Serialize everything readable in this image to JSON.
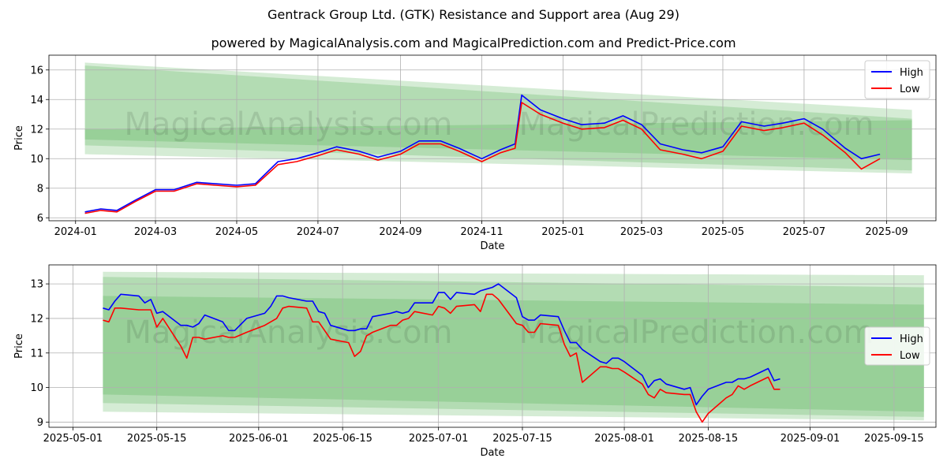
{
  "title": "Gentrack Group Ltd. (GTK) Resistance and Support area (Aug 29)",
  "subtitle": "powered by MagicalAnalysis.com and MagicalPrediction.com and Predict-Price.com",
  "watermark_left": "MagicalAnalysis.com",
  "watermark_right": "MagicalPrediction.com",
  "colors": {
    "high": "#0000ff",
    "low": "#ff0000",
    "band": "#2ca02c"
  },
  "chart_data": [
    {
      "type": "line",
      "xlabel": "Date",
      "ylabel": "Price",
      "x_ticks": [
        "2024-01",
        "2024-03",
        "2024-05",
        "2024-07",
        "2024-09",
        "2024-11",
        "2025-01",
        "2025-03",
        "2025-05",
        "2025-07",
        "2025-09"
      ],
      "y_ticks": [
        6,
        8,
        10,
        12,
        14,
        16
      ],
      "xlim": [
        "2023-12-12",
        "2025-10-08"
      ],
      "ylim": [
        5.8,
        17
      ],
      "grid": true,
      "legend": "top-right",
      "x": [
        "2024-01-08",
        "2024-01-20",
        "2024-02-01",
        "2024-02-15",
        "2024-03-01",
        "2024-03-15",
        "2024-04-01",
        "2024-04-15",
        "2024-05-01",
        "2024-05-15",
        "2024-06-01",
        "2024-06-15",
        "2024-07-01",
        "2024-07-15",
        "2024-08-01",
        "2024-08-15",
        "2024-09-01",
        "2024-09-15",
        "2024-10-01",
        "2024-10-15",
        "2024-11-01",
        "2024-11-15",
        "2024-11-26",
        "2024-12-01",
        "2024-12-15",
        "2025-01-01",
        "2025-01-15",
        "2025-02-01",
        "2025-02-15",
        "2025-03-01",
        "2025-03-15",
        "2025-04-01",
        "2025-04-15",
        "2025-05-01",
        "2025-05-15",
        "2025-06-01",
        "2025-06-15",
        "2025-07-01",
        "2025-07-15",
        "2025-08-01",
        "2025-08-13",
        "2025-08-27"
      ],
      "series": [
        {
          "name": "High",
          "values": [
            6.4,
            6.6,
            6.5,
            7.2,
            7.9,
            7.9,
            8.4,
            8.3,
            8.2,
            8.3,
            9.8,
            10.0,
            10.4,
            10.8,
            10.5,
            10.1,
            10.5,
            11.2,
            11.2,
            10.7,
            10.0,
            10.6,
            11.0,
            14.3,
            13.3,
            12.7,
            12.3,
            12.4,
            12.9,
            12.3,
            11.0,
            10.6,
            10.4,
            10.8,
            12.5,
            12.2,
            12.4,
            12.7,
            12.0,
            10.7,
            10.0,
            10.3
          ]
        },
        {
          "name": "Low",
          "values": [
            6.3,
            6.5,
            6.4,
            7.1,
            7.8,
            7.8,
            8.3,
            8.2,
            8.1,
            8.2,
            9.6,
            9.8,
            10.2,
            10.6,
            10.3,
            9.9,
            10.3,
            11.0,
            11.0,
            10.5,
            9.8,
            10.4,
            10.7,
            13.8,
            13.0,
            12.4,
            12.0,
            12.1,
            12.6,
            12.0,
            10.6,
            10.3,
            10.0,
            10.5,
            12.2,
            11.9,
            12.1,
            12.4,
            11.6,
            10.4,
            9.3,
            10.0
          ]
        }
      ]
    },
    {
      "type": "line",
      "xlabel": "Date",
      "ylabel": "Price",
      "x_ticks": [
        "2025-05-01",
        "2025-05-15",
        "2025-06-01",
        "2025-06-15",
        "2025-07-01",
        "2025-07-15",
        "2025-08-01",
        "2025-08-15",
        "2025-09-01",
        "2025-09-15"
      ],
      "y_ticks": [
        9,
        10,
        11,
        12,
        13
      ],
      "xlim": [
        "2025-04-27",
        "2025-09-22"
      ],
      "ylim": [
        8.85,
        13.55
      ],
      "grid": true,
      "legend": "center-right",
      "x": [
        "2025-05-06",
        "2025-05-07",
        "2025-05-08",
        "2025-05-09",
        "2025-05-12",
        "2025-05-13",
        "2025-05-14",
        "2025-05-15",
        "2025-05-16",
        "2025-05-19",
        "2025-05-20",
        "2025-05-21",
        "2025-05-22",
        "2025-05-23",
        "2025-05-26",
        "2025-05-27",
        "2025-05-28",
        "2025-05-30",
        "2025-06-02",
        "2025-06-03",
        "2025-06-04",
        "2025-06-05",
        "2025-06-06",
        "2025-06-09",
        "2025-06-10",
        "2025-06-11",
        "2025-06-12",
        "2025-06-13",
        "2025-06-16",
        "2025-06-17",
        "2025-06-18",
        "2025-06-19",
        "2025-06-20",
        "2025-06-23",
        "2025-06-24",
        "2025-06-25",
        "2025-06-26",
        "2025-06-27",
        "2025-06-30",
        "2025-07-01",
        "2025-07-02",
        "2025-07-03",
        "2025-07-04",
        "2025-07-07",
        "2025-07-08",
        "2025-07-09",
        "2025-07-10",
        "2025-07-11",
        "2025-07-14",
        "2025-07-15",
        "2025-07-16",
        "2025-07-17",
        "2025-07-18",
        "2025-07-21",
        "2025-07-22",
        "2025-07-23",
        "2025-07-24",
        "2025-07-25",
        "2025-07-28",
        "2025-07-29",
        "2025-07-30",
        "2025-07-31",
        "2025-08-01",
        "2025-08-04",
        "2025-08-05",
        "2025-08-06",
        "2025-08-07",
        "2025-08-08",
        "2025-08-11",
        "2025-08-12",
        "2025-08-13",
        "2025-08-14",
        "2025-08-15",
        "2025-08-18",
        "2025-08-19",
        "2025-08-20",
        "2025-08-21",
        "2025-08-22",
        "2025-08-25",
        "2025-08-26",
        "2025-08-27"
      ],
      "series": [
        {
          "name": "High",
          "values": [
            12.3,
            12.25,
            12.5,
            12.7,
            12.65,
            12.45,
            12.55,
            12.15,
            12.2,
            11.8,
            11.8,
            11.75,
            11.85,
            12.1,
            11.9,
            11.65,
            11.65,
            12.0,
            12.15,
            12.35,
            12.65,
            12.65,
            12.6,
            12.5,
            12.5,
            12.2,
            12.15,
            11.8,
            11.65,
            11.65,
            11.7,
            11.7,
            12.05,
            12.15,
            12.2,
            12.15,
            12.2,
            12.45,
            12.45,
            12.75,
            12.75,
            12.55,
            12.75,
            12.7,
            12.8,
            12.85,
            12.9,
            13.0,
            12.6,
            12.05,
            11.95,
            11.95,
            12.1,
            12.05,
            11.65,
            11.3,
            11.3,
            11.1,
            10.75,
            10.7,
            10.85,
            10.85,
            10.75,
            10.35,
            10.0,
            10.2,
            10.25,
            10.1,
            9.95,
            10.0,
            9.5,
            9.75,
            9.95,
            10.15,
            10.15,
            10.25,
            10.25,
            10.3,
            10.55,
            10.2,
            10.25
          ]
        },
        {
          "name": "Low",
          "values": [
            11.95,
            11.9,
            12.3,
            12.3,
            12.25,
            12.25,
            12.25,
            11.75,
            12.0,
            11.2,
            10.85,
            11.45,
            11.45,
            11.4,
            11.5,
            11.45,
            11.45,
            11.6,
            11.8,
            11.9,
            12.0,
            12.3,
            12.35,
            12.3,
            11.9,
            11.9,
            11.65,
            11.4,
            11.3,
            10.9,
            11.05,
            11.5,
            11.6,
            11.8,
            11.8,
            11.95,
            12.0,
            12.2,
            12.1,
            12.35,
            12.3,
            12.15,
            12.35,
            12.4,
            12.2,
            12.7,
            12.7,
            12.55,
            11.85,
            11.8,
            11.6,
            11.6,
            11.85,
            11.8,
            11.25,
            10.9,
            11.0,
            10.15,
            10.6,
            10.6,
            10.55,
            10.55,
            10.45,
            10.1,
            9.8,
            9.7,
            9.95,
            9.85,
            9.8,
            9.8,
            9.3,
            9.0,
            9.25,
            9.7,
            9.8,
            10.05,
            9.95,
            10.05,
            10.3,
            9.95,
            9.95
          ]
        }
      ]
    }
  ]
}
